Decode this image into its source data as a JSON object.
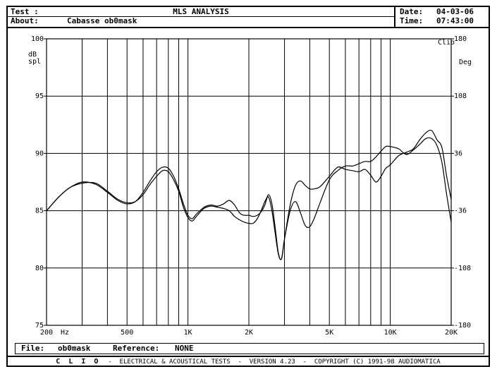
{
  "header": {
    "test_label": "Test :",
    "title": "MLS ANALYSIS",
    "about_label": "About:",
    "about_value": "Cabasse ob0mask",
    "date_label": "Date:",
    "date_value": "04-03-06",
    "time_label": "Time:",
    "time_value": "07:43:00"
  },
  "footer": {
    "file_label": "File:",
    "file_value": "ob0mask",
    "reference_label": "Reference:",
    "reference_value": "NONE",
    "brand": "C L I O",
    "description": "ELECTRICAL & ACOUSTICAL TESTS",
    "version": "VERSION 4.23",
    "copyright": "COPYRIGHT (C) 1991-98 AUDIOMATICA"
  },
  "chart_data": {
    "type": "line",
    "x_scale": "log",
    "xlim": [
      200,
      20000
    ],
    "ylim": [
      75,
      100
    ],
    "y2lim": [
      -180,
      180
    ],
    "ylabel_line1": "dB",
    "ylabel_line2": "spl",
    "y2label": "Deg",
    "corner_label": "Clio",
    "x_unit_label": "Hz",
    "x_ticks": [
      200,
      500,
      1000,
      2000,
      5000,
      10000,
      20000
    ],
    "x_tick_labels": [
      "200",
      "500",
      "1K",
      "2K",
      "5K",
      "10K",
      "20K"
    ],
    "y_ticks": [
      100,
      95,
      90,
      85,
      80,
      75
    ],
    "y_tick_labels": [
      "100",
      "95",
      "90",
      "85",
      "80",
      "75"
    ],
    "y2_ticks": [
      180,
      108,
      36,
      -36,
      -108,
      -180
    ],
    "y2_tick_labels": [
      "180",
      "108",
      "36",
      "-36",
      "-108",
      "-180"
    ],
    "grid": true,
    "series": [
      {
        "x": [
          200,
          230,
          260,
          300,
          350,
          400,
          450,
          500,
          550,
          600,
          650,
          700,
          750,
          800,
          850,
          900,
          950,
          1000,
          1050,
          1100,
          1200,
          1300,
          1400,
          1500,
          1600,
          1700,
          1800,
          1900,
          2000,
          2100,
          2200,
          2300,
          2400,
          2500,
          2600,
          2700,
          2800,
          2900,
          3000,
          3200,
          3400,
          3600,
          3800,
          4000,
          4200,
          4500,
          5000,
          5500,
          6000,
          6500,
          7000,
          7500,
          8000,
          8500,
          9000,
          9500,
          10000,
          11000,
          12000,
          13000,
          14000,
          15000,
          16000,
          17000,
          18000,
          19000,
          20000
        ],
        "y": [
          85,
          86.2,
          87,
          87.5,
          87.3,
          86.6,
          85.9,
          85.6,
          85.8,
          86.6,
          87.6,
          88.4,
          88.8,
          88.7,
          88,
          86.9,
          85.6,
          84.6,
          84.3,
          84.7,
          85.3,
          85.5,
          85.4,
          85.6,
          85.9,
          85.5,
          84.8,
          84.6,
          84.6,
          84.5,
          84.6,
          84.9,
          85.5,
          86.4,
          85.6,
          83.5,
          81.3,
          80.8,
          82.5,
          85.5,
          87.2,
          87.6,
          87.2,
          86.9,
          86.9,
          87.1,
          88,
          88.8,
          88.6,
          88.5,
          88.4,
          88.6,
          88.1,
          87.5,
          88,
          88.7,
          89,
          89.8,
          90.1,
          90.4,
          91.2,
          91.8,
          92,
          91.2,
          90.5,
          88,
          86
        ]
      },
      {
        "x": [
          200,
          230,
          260,
          300,
          350,
          400,
          450,
          500,
          550,
          600,
          650,
          700,
          750,
          800,
          850,
          900,
          950,
          1000,
          1050,
          1100,
          1200,
          1300,
          1400,
          1500,
          1600,
          1700,
          1800,
          1900,
          2000,
          2100,
          2200,
          2300,
          2400,
          2500,
          2600,
          2700,
          2800,
          2900,
          3000,
          3200,
          3400,
          3600,
          3800,
          4000,
          4200,
          4500,
          5000,
          5500,
          6000,
          6500,
          7000,
          7500,
          8000,
          8500,
          9000,
          9500,
          10000,
          11000,
          12000,
          13000,
          14000,
          15000,
          16000,
          17000,
          18000,
          19000,
          20000
        ],
        "y": [
          85,
          86.2,
          87,
          87.4,
          87.4,
          86.7,
          86,
          85.7,
          85.8,
          86.4,
          87.3,
          88,
          88.5,
          88.4,
          87.7,
          86.7,
          85.3,
          84.4,
          84.1,
          84.5,
          85.2,
          85.4,
          85.3,
          85.2,
          85,
          84.5,
          84.2,
          84,
          83.9,
          83.9,
          84.3,
          85,
          85.8,
          86.2,
          85,
          83,
          81.2,
          80.8,
          82.5,
          85,
          85.8,
          84.8,
          83.7,
          83.6,
          84.3,
          85.7,
          87.7,
          88.5,
          88.9,
          88.9,
          89.1,
          89.3,
          89.3,
          89.7,
          90.2,
          90.6,
          90.6,
          90.4,
          89.9,
          90.3,
          90.8,
          91.3,
          91.3,
          90.7,
          89.2,
          86.4,
          84
        ]
      }
    ]
  }
}
